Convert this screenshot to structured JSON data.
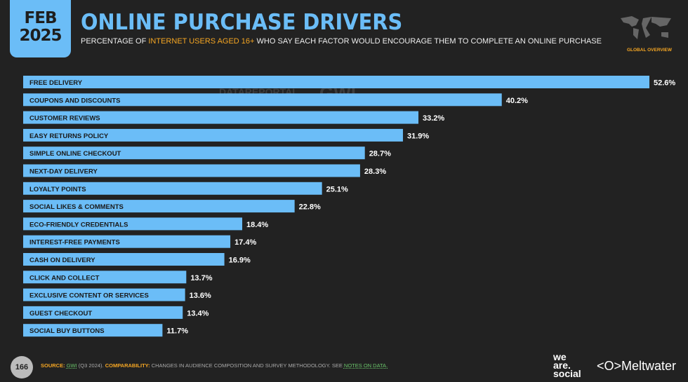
{
  "header": {
    "month": "FEB",
    "year": "2025",
    "title": "ONLINE PURCHASE DRIVERS",
    "subtitle_pre": "PERCENTAGE OF ",
    "subtitle_highlight": "INTERNET USERS AGED 16+",
    "subtitle_post": " WHO SAY EACH FACTOR WOULD ENCOURAGE THEM TO COMPLETE AN ONLINE PURCHASE",
    "region": "GLOBAL OVERVIEW"
  },
  "watermark": {
    "left": "DATAREPORTAL",
    "right": "GWI."
  },
  "footer": {
    "page": "166",
    "source_label": "SOURCE:",
    "source_link": "GWI",
    "source_text": " (Q3 2024). ",
    "comp_label": "COMPARABILITY:",
    "comp_text": " CHANGES IN AUDIENCE COMPOSITION AND SURVEY METHODOLOGY. SEE ",
    "notes_link": "NOTES ON DATA.",
    "brand1": "we are social",
    "brand2": "Meltwater"
  },
  "colors": {
    "bar": "#6bbdf7",
    "accent": "#f5a623",
    "background": "#222222"
  },
  "chart_data": {
    "type": "bar",
    "orientation": "horizontal",
    "unit": "%",
    "categories": [
      "FREE DELIVERY",
      "COUPONS AND DISCOUNTS",
      "CUSTOMER REVIEWS",
      "EASY RETURNS POLICY",
      "SIMPLE ONLINE CHECKOUT",
      "NEXT-DAY DELIVERY",
      "LOYALTY POINTS",
      "SOCIAL LIKES & COMMENTS",
      "ECO-FRIENDLY CREDENTIALS",
      "INTEREST-FREE PAYMENTS",
      "CASH ON DELIVERY",
      "CLICK AND COLLECT",
      "EXCLUSIVE CONTENT OR SERVICES",
      "GUEST CHECKOUT",
      "SOCIAL BUY BUTTONS"
    ],
    "values": [
      52.6,
      40.2,
      33.2,
      31.9,
      28.7,
      28.3,
      25.1,
      22.8,
      18.4,
      17.4,
      16.9,
      13.7,
      13.6,
      13.4,
      11.7
    ],
    "labels": [
      "52.6%",
      "40.2%",
      "33.2%",
      "31.9%",
      "28.7%",
      "28.3%",
      "25.1%",
      "22.8%",
      "18.4%",
      "17.4%",
      "16.9%",
      "13.7%",
      "13.6%",
      "13.4%",
      "11.7%"
    ]
  }
}
